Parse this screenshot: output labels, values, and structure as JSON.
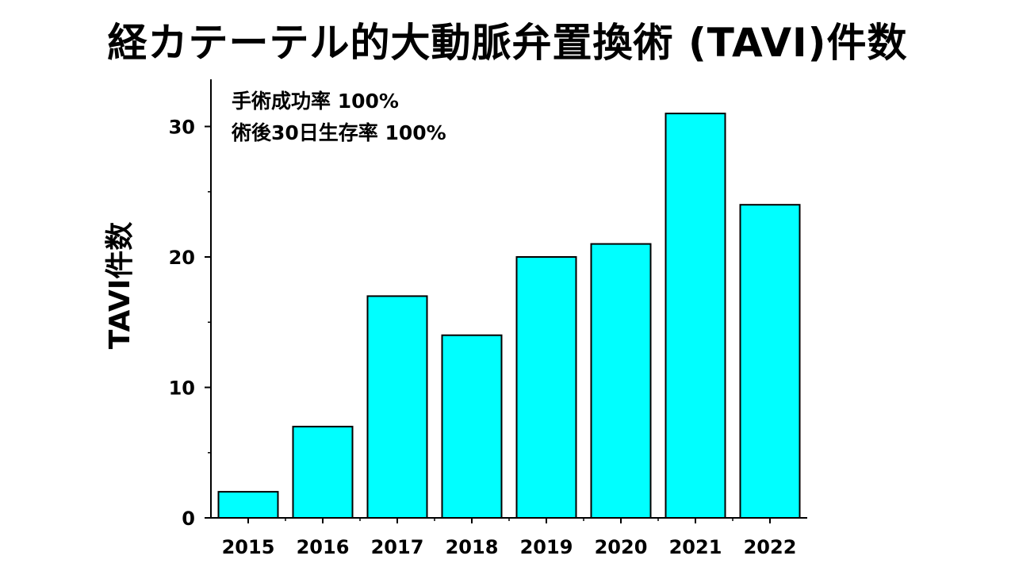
{
  "title": "経カテーテル的大動脈弁置換術 (TAVI)件数",
  "chart_data": {
    "type": "bar",
    "categories": [
      "2015",
      "2016",
      "2017",
      "2018",
      "2019",
      "2020",
      "2021",
      "2022"
    ],
    "values": [
      2,
      7,
      17,
      14,
      20,
      21,
      31,
      24
    ],
    "ylabel": "TAVI件数",
    "xlabel": "",
    "ylim": [
      0,
      33.5
    ],
    "yticks": [
      0,
      10,
      20,
      30
    ],
    "bar_color": "#00FFFF",
    "bar_edge_color": "#000000",
    "grid": false,
    "annotations": [
      "手術成功率 100%",
      "術後30日生存率 100%"
    ]
  }
}
